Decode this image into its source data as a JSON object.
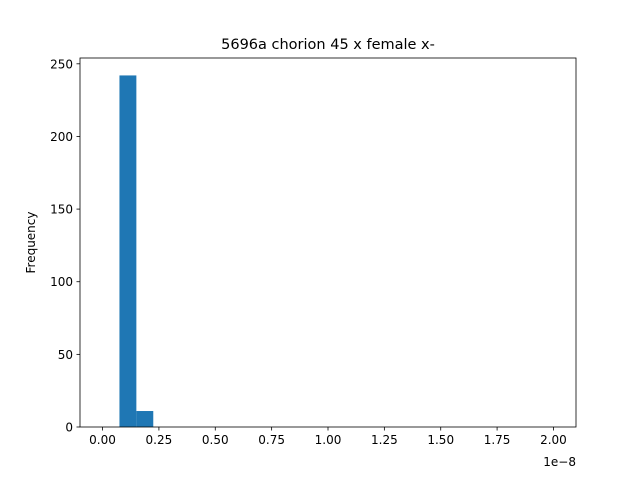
{
  "chart_data": {
    "type": "bar",
    "subtype": "histogram",
    "title": "5696a chorion 45 x female x-",
    "xlabel": "",
    "ylabel": "Frequency",
    "x_offset_label": "1e−8",
    "x_scale_multiplier": 1e-08,
    "bin_width": 0.075,
    "bins": [
      {
        "start": 0.075,
        "end": 0.15,
        "count": 242
      },
      {
        "start": 0.15,
        "end": 0.225,
        "count": 11
      }
    ],
    "xlim": [
      -0.1,
      2.1
    ],
    "ylim": [
      0,
      254
    ],
    "x_ticks": [
      0.0,
      0.25,
      0.5,
      0.75,
      1.0,
      1.25,
      1.5,
      1.75,
      2.0
    ],
    "x_tick_labels": [
      "0.00",
      "0.25",
      "0.50",
      "0.75",
      "1.00",
      "1.25",
      "1.50",
      "1.75",
      "2.00"
    ],
    "y_ticks": [
      0,
      50,
      100,
      150,
      200,
      250
    ],
    "y_tick_labels": [
      "0",
      "50",
      "100",
      "150",
      "200",
      "250"
    ],
    "grid": false,
    "legend": "none",
    "colors": {
      "bar": "#1f77b4",
      "axis": "#000000",
      "background": "#ffffff"
    }
  }
}
